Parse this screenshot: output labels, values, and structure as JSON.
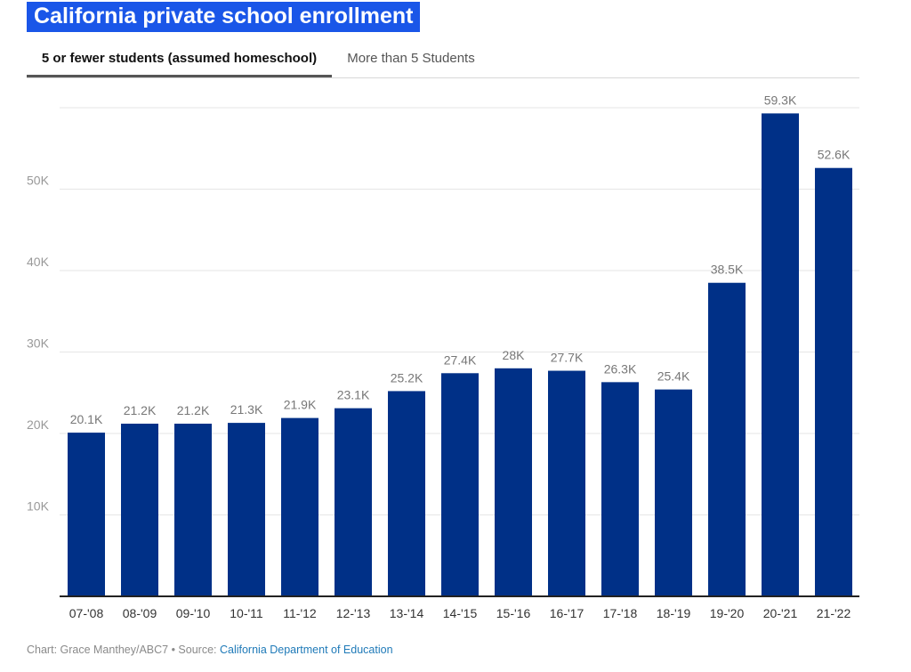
{
  "header": {
    "title": "California private school enrollment"
  },
  "tabs": [
    {
      "label": "5 or fewer students (assumed homeschool)",
      "active": true
    },
    {
      "label": "More than 5 Students",
      "active": false
    }
  ],
  "colors": {
    "bar": "#003087",
    "title_bg": "#1a56e8",
    "grid": "#e6e6e6",
    "axis": "#222222"
  },
  "chart_data": {
    "type": "bar",
    "categories": [
      "07-'08",
      "08-'09",
      "09-'10",
      "10-'11",
      "11-'12",
      "12-'13",
      "13-'14",
      "14-'15",
      "15-'16",
      "16-'17",
      "17-'18",
      "18-'19",
      "19-'20",
      "20-'21",
      "21-'22"
    ],
    "values": [
      20100,
      21200,
      21200,
      21300,
      21900,
      23100,
      25200,
      27400,
      28000,
      27700,
      26300,
      25400,
      38500,
      59300,
      52600
    ],
    "data_labels": [
      "20.1K",
      "21.2K",
      "21.2K",
      "21.3K",
      "21.9K",
      "23.1K",
      "25.2K",
      "27.4K",
      "28K",
      "27.7K",
      "26.3K",
      "25.4K",
      "38.5K",
      "59.3K",
      "52.6K"
    ],
    "y_ticks": [
      10000,
      20000,
      30000,
      40000,
      50000
    ],
    "y_tick_labels": [
      "10K",
      "20K",
      "30K",
      "40K",
      "50K"
    ],
    "ylim": [
      0,
      60000
    ],
    "grid": true,
    "xlabel": "",
    "ylabel": ""
  },
  "footer": {
    "credit": "Chart: Grace Manthey/ABC7 • Source: ",
    "source_link": "California Department of Education"
  }
}
